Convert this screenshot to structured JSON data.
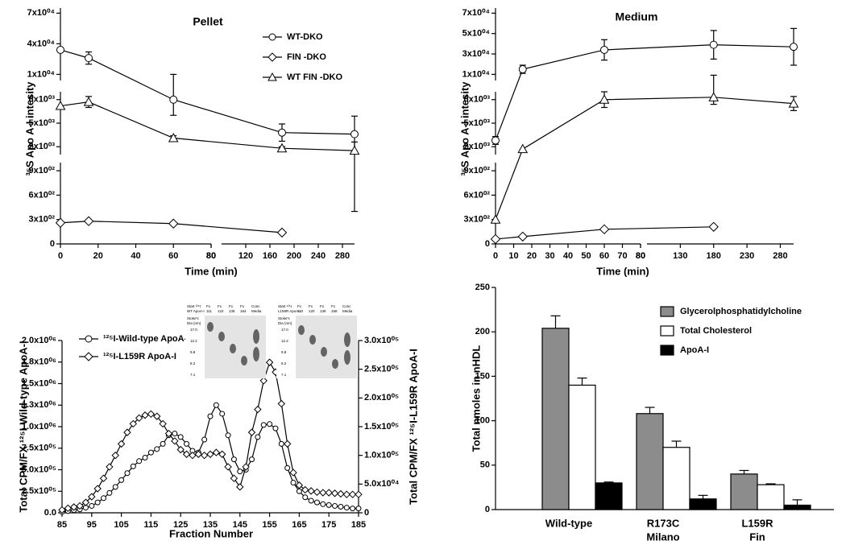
{
  "chart_data": [
    {
      "type": "line",
      "title": "Pellet",
      "x_label": "Time (min)",
      "y_label": "³⁵S Apo A-I intesity",
      "x": [
        0,
        15,
        60,
        180,
        300
      ],
      "xlim": [
        [
          0,
          80
        ],
        [
          80,
          300
        ]
      ],
      "xticks": [
        [
          0,
          20,
          40,
          60,
          80
        ],
        [
          80,
          120,
          160,
          200,
          240,
          280
        ]
      ],
      "ylim": [
        [
          0,
          1000
        ],
        [
          1000,
          9000
        ],
        [
          4000,
          75000
        ]
      ],
      "yticks": [
        [
          0,
          {
            "value": 300,
            "label": "3x10⁰²"
          },
          {
            "value": 600,
            "label": "6x10⁰²"
          },
          {
            "value": 900,
            "label": "9x10⁰²"
          }
        ],
        [
          {
            "value": 2000,
            "label": "2x10⁰³"
          },
          {
            "value": 5000,
            "label": "5x10⁰³"
          },
          {
            "value": 8000,
            "label": "8x10⁰³"
          }
        ],
        [
          {
            "value": 10000,
            "label": "1x10⁰⁴"
          },
          {
            "value": 40000,
            "label": "4x10⁰⁴"
          },
          {
            "value": 70000,
            "label": "7x10⁰⁴"
          }
        ]
      ],
      "legend": true,
      "series": [
        {
          "name": "WT-DKO",
          "marker": "circle",
          "color": "#000000",
          "values": [
            34000,
            26000,
            8000,
            3800,
            3600
          ],
          "errors": [
            null,
            6000,
            2000,
            1100,
            2300
          ]
        },
        {
          "name": "FIN -DKO",
          "marker": "diamond",
          "color": "#000000",
          "values": [
            260,
            280,
            250,
            140,
            null
          ],
          "errors": [
            null,
            null,
            null,
            null,
            null
          ]
        },
        {
          "name": "WT FIN -DKO",
          "marker": "triangle",
          "color": "#000000",
          "values": [
            7200,
            7700,
            3100,
            1800,
            1500
          ],
          "errors": [
            null,
            700,
            300,
            200,
            1100
          ]
        }
      ]
    },
    {
      "type": "line",
      "title": "Medium",
      "x_label": "Time (min)",
      "y_label": "³⁵S Apo A-I intesity",
      "x": [
        0,
        15,
        60,
        180,
        300
      ],
      "xlim": [
        [
          0,
          80
        ],
        [
          80,
          300
        ]
      ],
      "xticks": [
        [
          0,
          10,
          20,
          30,
          40,
          50,
          60,
          70,
          80
        ],
        [
          80,
          130,
          180,
          230,
          280
        ]
      ],
      "ylim": [
        [
          0,
          1000
        ],
        [
          1000,
          9000
        ],
        [
          4000,
          75000
        ]
      ],
      "yticks": [
        [
          0,
          {
            "value": 300,
            "label": "3x10⁰²"
          },
          {
            "value": 600,
            "label": "6x10⁰²"
          },
          {
            "value": 900,
            "label": "9x10⁰²"
          }
        ],
        [
          {
            "value": 2000,
            "label": "2x10⁰³"
          },
          {
            "value": 5000,
            "label": "5x10⁰³"
          },
          {
            "value": 8000,
            "label": "8x10⁰³"
          }
        ],
        [
          {
            "value": 10000,
            "label": "1x10⁰⁴"
          },
          {
            "value": 30000,
            "label": "3x10⁰⁴"
          },
          {
            "value": 50000,
            "label": "5x10⁰⁴"
          },
          {
            "value": 70000,
            "label": "7x10⁰⁴"
          }
        ]
      ],
      "legend": false,
      "series": [
        {
          "name": "WT-DKO",
          "marker": "circle",
          "color": "#000000",
          "values": [
            2800,
            15000,
            34000,
            39000,
            37000
          ],
          "errors": [
            500,
            4000,
            10000,
            14000,
            18000
          ]
        },
        {
          "name": "FIN -DKO",
          "marker": "diamond",
          "color": "#000000",
          "values": [
            60,
            90,
            180,
            210,
            null
          ],
          "errors": [
            null,
            null,
            null,
            null,
            null
          ]
        },
        {
          "name": "WT FIN -DKO",
          "marker": "triangle",
          "color": "#000000",
          "values": [
            300,
            1700,
            8000,
            8300,
            7500
          ],
          "errors": [
            null,
            null,
            1000,
            900,
            900
          ]
        }
      ]
    },
    {
      "type": "line",
      "x_label": "Fraction Number",
      "y_label": "Total CPM/FX ¹²⁵I-Wild-type ApoA-I",
      "y2_label": "Total CPM/FX ¹²⁵I-L159R ApoA-I",
      "x": [
        85,
        87,
        89,
        91,
        93,
        95,
        97,
        99,
        101,
        103,
        105,
        107,
        109,
        111,
        113,
        115,
        117,
        119,
        121,
        123,
        125,
        127,
        129,
        131,
        133,
        135,
        137,
        139,
        141,
        143,
        145,
        147,
        149,
        151,
        153,
        155,
        157,
        159,
        161,
        163,
        165,
        167,
        169,
        171,
        173,
        175,
        177,
        179,
        181,
        183,
        185
      ],
      "xlim": [
        85,
        185
      ],
      "xticks": [
        85,
        95,
        105,
        115,
        125,
        135,
        145,
        155,
        165,
        175,
        185
      ],
      "ylim": [
        0,
        2000000
      ],
      "yticks": [
        {
          "value": 0,
          "label": "0.0"
        },
        {
          "value": 250000,
          "label": "2.5x10⁰⁵"
        },
        {
          "value": 500000,
          "label": "5.0x10⁰⁵"
        },
        {
          "value": 750000,
          "label": "7.5x10⁰⁵"
        },
        {
          "value": 1000000,
          "label": "1.0x10⁰⁶"
        },
        {
          "value": 1250000,
          "label": "1.3x10⁰⁶"
        },
        {
          "value": 1500000,
          "label": "1.5x10⁰⁶"
        },
        {
          "value": 1750000,
          "label": "1.8x10⁰⁶"
        },
        {
          "value": 2000000,
          "label": "2.0x10⁰⁶"
        }
      ],
      "y2lim": [
        0,
        300000
      ],
      "y2ticks": [
        0,
        {
          "value": 50000,
          "label": "5.0x10⁰⁴"
        },
        {
          "value": 100000,
          "label": "1.0x10⁰⁵"
        },
        {
          "value": 150000,
          "label": "1.5x10⁰⁵"
        },
        {
          "value": 200000,
          "label": "2.0x10⁰⁵"
        },
        {
          "value": 250000,
          "label": "2.5x10⁰⁵"
        },
        {
          "value": 300000,
          "label": "3.0x10⁰⁵"
        }
      ],
      "legend": true,
      "series": [
        {
          "name": "¹²⁵I-Wild-type ApoA-I",
          "marker": "circle",
          "color": "#000000",
          "values": [
            10000,
            20000,
            30000,
            40000,
            60000,
            80000,
            120000,
            170000,
            230000,
            300000,
            380000,
            460000,
            540000,
            600000,
            640000,
            700000,
            740000,
            800000,
            900000,
            920000,
            880000,
            800000,
            720000,
            700000,
            850000,
            1120000,
            1250000,
            1150000,
            900000,
            620000,
            480000,
            500000,
            620000,
            880000,
            1020000,
            1030000,
            980000,
            800000,
            520000,
            350000,
            250000,
            180000,
            140000,
            120000,
            100000,
            90000,
            80000,
            70000,
            60000,
            50000,
            50000
          ]
        },
        {
          "name": "¹²⁵I-L159R ApoA-I",
          "marker": "diamond",
          "color": "#000000",
          "axis": "y2",
          "values": [
            5000,
            8000,
            10000,
            12000,
            18000,
            28000,
            42000,
            60000,
            80000,
            100000,
            120000,
            140000,
            155000,
            165000,
            170000,
            172000,
            168000,
            155000,
            138000,
            125000,
            110000,
            102000,
            100000,
            102000,
            100000,
            102000,
            105000,
            102000,
            80000,
            60000,
            45000,
            80000,
            140000,
            180000,
            230000,
            262000,
            245000,
            190000,
            120000,
            70000,
            48000,
            40000,
            38000,
            36000,
            35000,
            35000,
            34000,
            33000,
            32000,
            32000,
            32000
          ]
        }
      ],
      "insets": [
        {
          "lanes": [
            [
              "Start ¹²⁵I",
              "WT ApoA-I"
            ],
            [
              "Fx",
              "111"
            ],
            [
              "Fx",
              "122"
            ],
            [
              "Fx",
              "136"
            ],
            [
              "Fx",
              "164"
            ],
            [
              "Conc",
              "Media"
            ]
          ],
          "sizes_label": [
            "Stoke's",
            "Dia (nm)"
          ],
          "sizes": [
            "17.0",
            "12.2",
            "9.8",
            "8.2",
            "7.1"
          ]
        },
        {
          "lanes": [
            [
              "Start ¹²⁵I",
              "L159R ApoA-I"
            ],
            [
              "Fx",
              "110"
            ],
            [
              "Fx",
              "120"
            ],
            [
              "Fx",
              "136"
            ],
            [
              "Fx",
              "158"
            ],
            [
              "Conc",
              "Media"
            ]
          ],
          "sizes_label": [
            "Stoke's",
            "Dia (nm)"
          ],
          "sizes": [
            "17.0",
            "12.2",
            "9.8",
            "8.2",
            "7.1"
          ]
        }
      ]
    },
    {
      "type": "bar",
      "y_label": "Total nmoles in nHDL",
      "categories": [
        [
          "Wild-type"
        ],
        [
          "R173C",
          "Milano"
        ],
        [
          "L159R",
          "Fin"
        ]
      ],
      "ylim": [
        0,
        250
      ],
      "yticks": [
        0,
        50,
        100,
        150,
        200,
        250
      ],
      "legend": true,
      "series": [
        {
          "name": "Glycerolphosphatidylcholine",
          "color": "#8c8c8c",
          "values": [
            204,
            108,
            40
          ],
          "errors": [
            14,
            7,
            4
          ]
        },
        {
          "name": "Total Cholesterol",
          "color": "#ffffff",
          "values": [
            140,
            70,
            28
          ],
          "errors": [
            8,
            7,
            1
          ]
        },
        {
          "name": "ApoA-I",
          "color": "#000000",
          "values": [
            30,
            12,
            5
          ],
          "errors": [
            1,
            4,
            6
          ]
        }
      ]
    }
  ]
}
